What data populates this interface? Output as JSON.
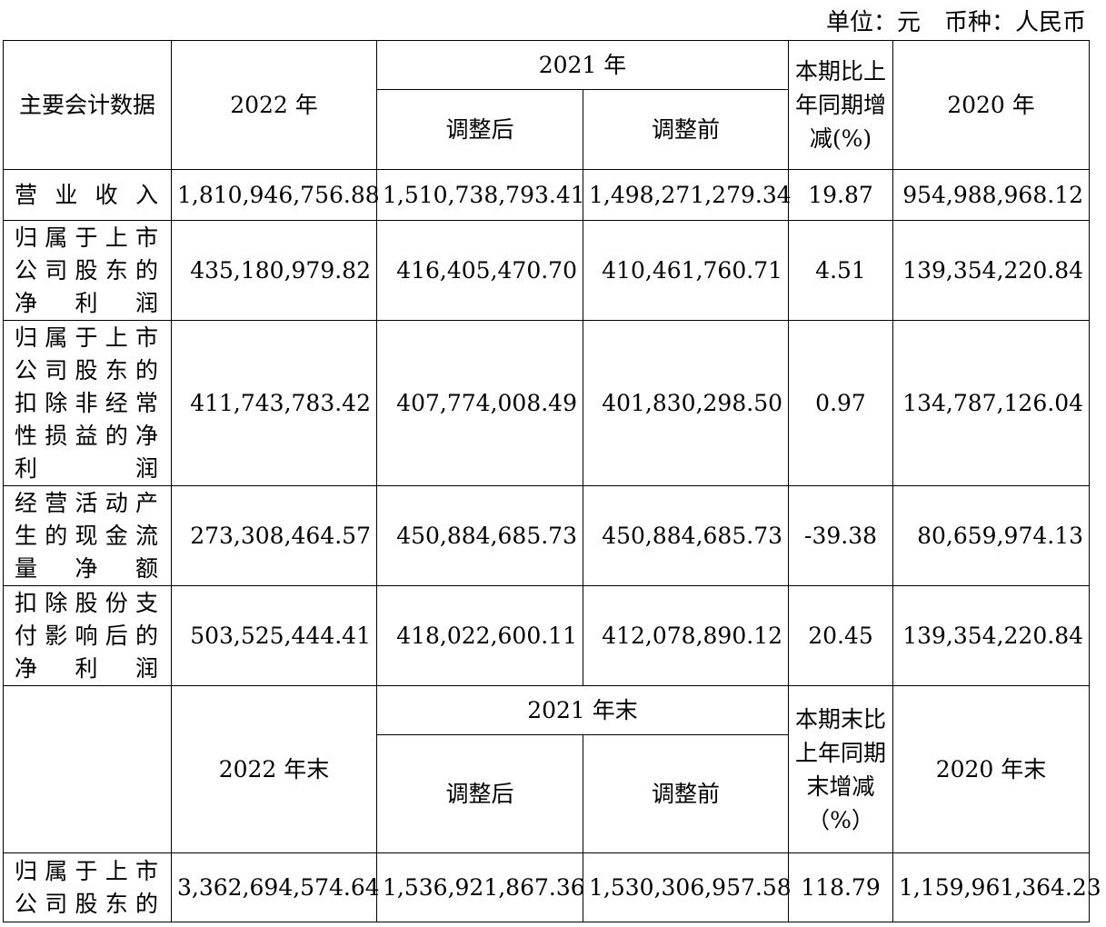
{
  "unit_line": "单位：元　币种：人民币",
  "header1": {
    "item": "主要会计数据",
    "year_2022": "2022 年",
    "year_2021": "2021 年",
    "adjusted": "调整后",
    "before_adjustment": "调整前",
    "change": "本期比上年同期增减(%)",
    "year_2020": "2020 年"
  },
  "rows1": [
    {
      "label": "营业收入",
      "v2022": "1,810,946,756.88",
      "v2021_adj": "1,510,738,793.41",
      "v2021_pre": "1,498,271,279.34",
      "change": "19.87",
      "v2020": "954,988,968.12"
    },
    {
      "label": "归属于上市公司股东的净利润",
      "v2022": "435,180,979.82",
      "v2021_adj": "416,405,470.70",
      "v2021_pre": "410,461,760.71",
      "change": "4.51",
      "v2020": "139,354,220.84"
    },
    {
      "label": "归属于上市公司股东的扣除非经常性损益的净利润",
      "v2022": "411,743,783.42",
      "v2021_adj": "407,774,008.49",
      "v2021_pre": "401,830,298.50",
      "change": "0.97",
      "v2020": "134,787,126.04"
    },
    {
      "label": "经营活动产生的现金流量净额",
      "v2022": "273,308,464.57",
      "v2021_adj": "450,884,685.73",
      "v2021_pre": "450,884,685.73",
      "change": "-39.38",
      "v2020": "80,659,974.13"
    },
    {
      "label": "扣除股份支付影响后的净利润",
      "v2022": "503,525,444.41",
      "v2021_adj": "418,022,600.11",
      "v2021_pre": "412,078,890.12",
      "change": "20.45",
      "v2020": "139,354,220.84"
    }
  ],
  "header2": {
    "item": "",
    "year_2022_end": "2022 年末",
    "year_2021_end": "2021 年末",
    "adjusted": "调整后",
    "before_adjustment": "调整前",
    "change": "本期末比上年同期末增减（%）",
    "year_2020_end": "2020 年末"
  },
  "rows2": [
    {
      "label": "归属于上市公司股东的",
      "v2022": "3,362,694,574.64",
      "v2021_adj": "1,536,921,867.36",
      "v2021_pre": "1,530,306,957.58",
      "change": "118.79",
      "v2020": "1,159,961,364.23"
    }
  ]
}
